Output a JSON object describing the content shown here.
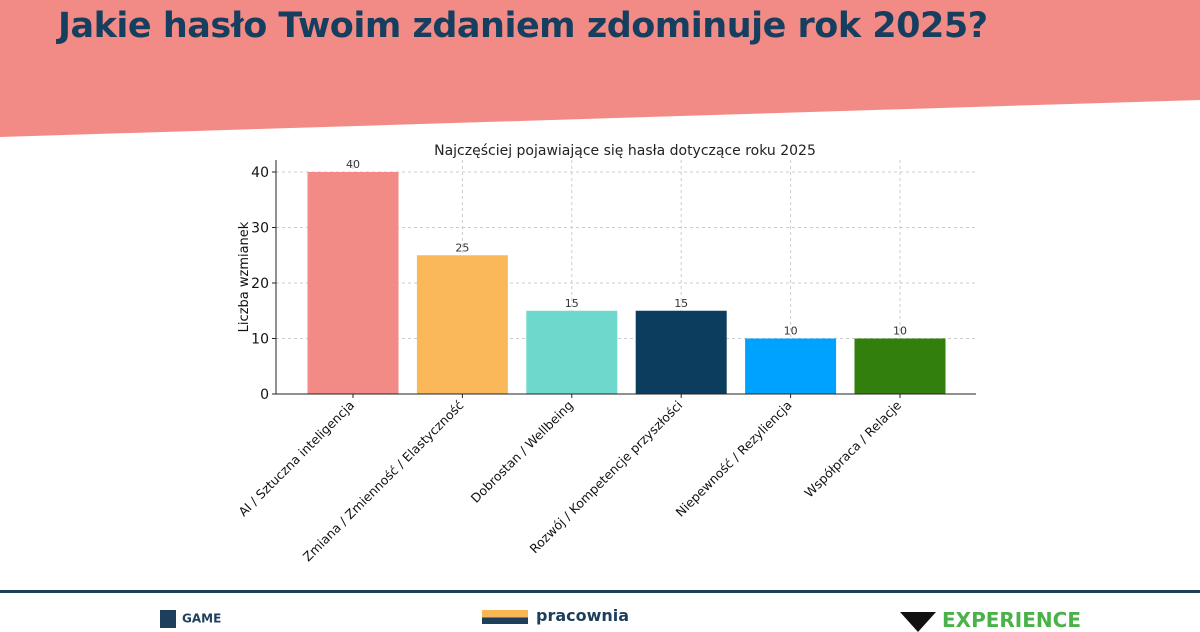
{
  "header": {
    "title": "Jakie hasło Twoim zdaniem zdominuje rok 2025?",
    "banner_color": "#f28b85",
    "title_color": "#163e5e"
  },
  "chart_data": {
    "type": "bar",
    "title": "Najczęściej pojawiające się hasła dotyczące roku 2025",
    "xlabel": "",
    "ylabel": "Liczba wzmianek",
    "ylim": [
      0,
      42
    ],
    "yticks": [
      0,
      10,
      20,
      30,
      40
    ],
    "grid": true,
    "categories": [
      "AI / Sztuczna inteligencja",
      "Zmiana / Zmienność / Elastyczność",
      "Dobrostan / Wellbeing",
      "Rozwój / Kompetencje przyszłości",
      "Niepewność / Rezyliencja",
      "Współpraca / Relacje"
    ],
    "values": [
      40,
      25,
      15,
      15,
      10,
      10
    ],
    "colors": [
      "#f28b85",
      "#fbb85a",
      "#6fd8cc",
      "#0c3d5e",
      "#00a2ff",
      "#327f0e"
    ]
  },
  "footer": {
    "logos": [
      {
        "text": "GAME",
        "color": "#1d3f5c"
      },
      {
        "text": "pracownia",
        "color": "#1d3f5c"
      },
      {
        "text": "EXPERIENCE",
        "color": "#4bb24a"
      }
    ]
  }
}
